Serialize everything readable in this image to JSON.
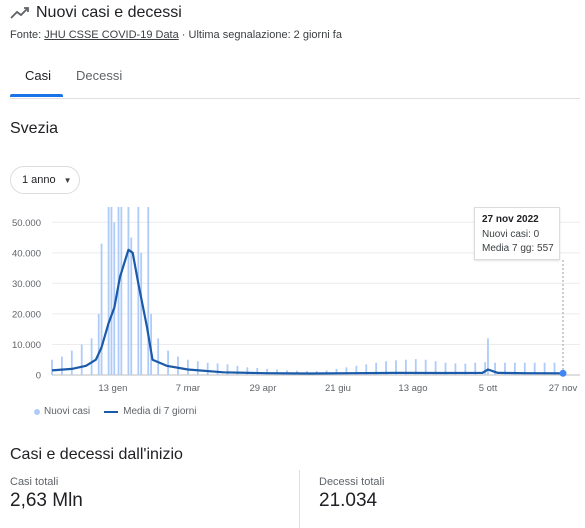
{
  "header": {
    "title": "Nuovi casi e decessi",
    "source_prefix": "Fonte: ",
    "source_link": "JHU CSSE COVID-19 Data",
    "source_suffix": " · Ultima segnalazione: 2 giorni fa"
  },
  "tabs": [
    {
      "label": "Casi",
      "active": true
    },
    {
      "label": "Decessi",
      "active": false
    }
  ],
  "region": "Svezia",
  "range": {
    "label": "1 anno"
  },
  "tooltip": {
    "date": "27 nov 2022",
    "new_cases": "Nuovi casi: 0",
    "avg": "Media 7 gg: 557"
  },
  "legend": {
    "bars": "Nuovi casi",
    "line": "Media di 7 giorni"
  },
  "colors": {
    "bars": "#aecbfa",
    "line": "#1a5aa8",
    "accent": "#1a73e8"
  },
  "chart_data": {
    "type": "bar",
    "y_ticks": [
      "0",
      "10.000",
      "20.000",
      "30.000",
      "40.000",
      "50.000"
    ],
    "x_ticks": [
      "13 gen",
      "7 mar",
      "29 apr",
      "21 giu",
      "13 ago",
      "5 ott",
      "27 nov"
    ],
    "ylim": [
      0,
      55000
    ],
    "grid": true,
    "bar_series_name": "Nuovi casi",
    "line_series_name": "Media di 7 giorni",
    "weekly_bars": [
      {
        "date": "2021-12-01",
        "value": 5000
      },
      {
        "date": "2021-12-08",
        "value": 6000
      },
      {
        "date": "2021-12-15",
        "value": 8000
      },
      {
        "date": "2021-12-22",
        "value": 10000
      },
      {
        "date": "2021-12-29",
        "value": 12000
      },
      {
        "date": "2022-01-03",
        "value": 20000
      },
      {
        "date": "2022-01-05",
        "value": 43000
      },
      {
        "date": "2022-01-10",
        "value": 55000
      },
      {
        "date": "2022-01-12",
        "value": 55000
      },
      {
        "date": "2022-01-14",
        "value": 50000
      },
      {
        "date": "2022-01-17",
        "value": 55000
      },
      {
        "date": "2022-01-19",
        "value": 55000
      },
      {
        "date": "2022-01-24",
        "value": 55000
      },
      {
        "date": "2022-01-26",
        "value": 45000
      },
      {
        "date": "2022-01-31",
        "value": 55000
      },
      {
        "date": "2022-02-02",
        "value": 40000
      },
      {
        "date": "2022-02-07",
        "value": 55000
      },
      {
        "date": "2022-02-09",
        "value": 20000
      },
      {
        "date": "2022-02-14",
        "value": 12000
      },
      {
        "date": "2022-02-21",
        "value": 8000
      },
      {
        "date": "2022-02-28",
        "value": 6000
      },
      {
        "date": "2022-03-07",
        "value": 5000
      },
      {
        "date": "2022-03-14",
        "value": 4500
      },
      {
        "date": "2022-03-21",
        "value": 4000
      },
      {
        "date": "2022-03-28",
        "value": 3800
      },
      {
        "date": "2022-04-04",
        "value": 3500
      },
      {
        "date": "2022-04-11",
        "value": 3000
      },
      {
        "date": "2022-04-18",
        "value": 2500
      },
      {
        "date": "2022-04-25",
        "value": 2300
      },
      {
        "date": "2022-05-02",
        "value": 2000
      },
      {
        "date": "2022-05-09",
        "value": 1800
      },
      {
        "date": "2022-05-16",
        "value": 1500
      },
      {
        "date": "2022-05-23",
        "value": 1400
      },
      {
        "date": "2022-05-30",
        "value": 1300
      },
      {
        "date": "2022-06-06",
        "value": 1300
      },
      {
        "date": "2022-06-13",
        "value": 1500
      },
      {
        "date": "2022-06-20",
        "value": 2000
      },
      {
        "date": "2022-06-27",
        "value": 2500
      },
      {
        "date": "2022-07-04",
        "value": 3000
      },
      {
        "date": "2022-07-11",
        "value": 3500
      },
      {
        "date": "2022-07-18",
        "value": 4000
      },
      {
        "date": "2022-07-25",
        "value": 4500
      },
      {
        "date": "2022-08-01",
        "value": 4800
      },
      {
        "date": "2022-08-08",
        "value": 5000
      },
      {
        "date": "2022-08-15",
        "value": 5200
      },
      {
        "date": "2022-08-22",
        "value": 5000
      },
      {
        "date": "2022-08-29",
        "value": 4500
      },
      {
        "date": "2022-09-05",
        "value": 4000
      },
      {
        "date": "2022-09-12",
        "value": 3800
      },
      {
        "date": "2022-09-19",
        "value": 3700
      },
      {
        "date": "2022-09-26",
        "value": 4000
      },
      {
        "date": "2022-10-03",
        "value": 4200
      },
      {
        "date": "2022-10-05",
        "value": 12000
      },
      {
        "date": "2022-10-10",
        "value": 4000
      },
      {
        "date": "2022-10-17",
        "value": 4000
      },
      {
        "date": "2022-10-24",
        "value": 4000
      },
      {
        "date": "2022-10-31",
        "value": 4000
      },
      {
        "date": "2022-11-07",
        "value": 4000
      },
      {
        "date": "2022-11-14",
        "value": 4000
      },
      {
        "date": "2022-11-21",
        "value": 4000
      }
    ],
    "avg_line": [
      {
        "date": "2021-12-01",
        "value": 1500
      },
      {
        "date": "2021-12-15",
        "value": 2000
      },
      {
        "date": "2021-12-25",
        "value": 3000
      },
      {
        "date": "2022-01-01",
        "value": 5000
      },
      {
        "date": "2022-01-05",
        "value": 9000
      },
      {
        "date": "2022-01-10",
        "value": 17000
      },
      {
        "date": "2022-01-14",
        "value": 22000
      },
      {
        "date": "2022-01-18",
        "value": 32000
      },
      {
        "date": "2022-01-24",
        "value": 41000
      },
      {
        "date": "2022-01-27",
        "value": 40000
      },
      {
        "date": "2022-01-31",
        "value": 30000
      },
      {
        "date": "2022-02-06",
        "value": 16000
      },
      {
        "date": "2022-02-10",
        "value": 5000
      },
      {
        "date": "2022-02-20",
        "value": 3000
      },
      {
        "date": "2022-03-07",
        "value": 1800
      },
      {
        "date": "2022-04-01",
        "value": 900
      },
      {
        "date": "2022-05-01",
        "value": 600
      },
      {
        "date": "2022-06-01",
        "value": 500
      },
      {
        "date": "2022-07-01",
        "value": 600
      },
      {
        "date": "2022-08-01",
        "value": 700
      },
      {
        "date": "2022-09-01",
        "value": 650
      },
      {
        "date": "2022-10-01",
        "value": 700
      },
      {
        "date": "2022-10-05",
        "value": 1800
      },
      {
        "date": "2022-10-12",
        "value": 700
      },
      {
        "date": "2022-11-01",
        "value": 600
      },
      {
        "date": "2022-11-27",
        "value": 557
      }
    ],
    "highlight_date": "2022-11-27"
  },
  "totals": {
    "section_title": "Casi e decessi dall'inizio",
    "cases_label": "Casi totali",
    "cases_value": "2,63 Mln",
    "deaths_label": "Decessi totali",
    "deaths_value": "21.034"
  }
}
